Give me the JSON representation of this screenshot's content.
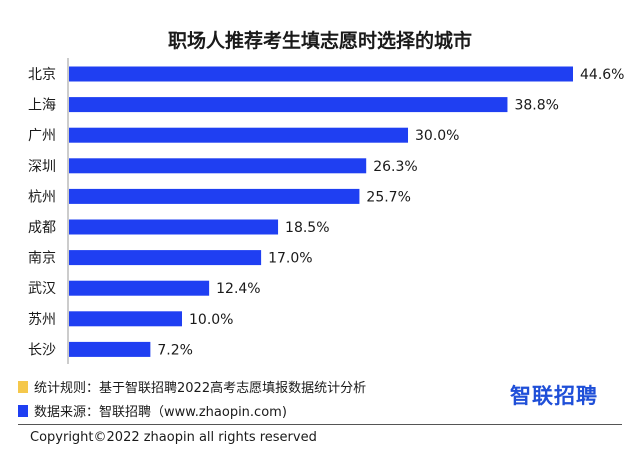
{
  "colors": {
    "bar": "#1f3ff2",
    "rule_marker": "#f5c84c",
    "source_marker": "#1f3ff2",
    "brand": "#1f4fd8"
  },
  "chart_data": {
    "type": "bar",
    "orientation": "horizontal",
    "title": "职场人推荐考生填志愿时选择的城市",
    "categories": [
      "北京",
      "上海",
      "广州",
      "深圳",
      "杭州",
      "成都",
      "南京",
      "武汉",
      "苏州",
      "长沙"
    ],
    "values": [
      44.6,
      38.8,
      30.0,
      26.3,
      25.7,
      18.5,
      17.0,
      12.4,
      10.0,
      7.2
    ],
    "value_labels": [
      "44.6%",
      "38.8%",
      "30.0%",
      "26.3%",
      "25.7%",
      "18.5%",
      "17.0%",
      "12.4%",
      "10.0%",
      "7.2%"
    ],
    "xlim": [
      0,
      44.6
    ],
    "grid": false,
    "legend": "none"
  },
  "notes": {
    "rule": "统计规则：基于智联招聘2022高考志愿填报数据统计分析",
    "source": "数据来源：智联招聘（www.zhaopin.com)"
  },
  "brand": "智联招聘",
  "copyright": "Copyright©2022 zhaopin all rights reserved"
}
